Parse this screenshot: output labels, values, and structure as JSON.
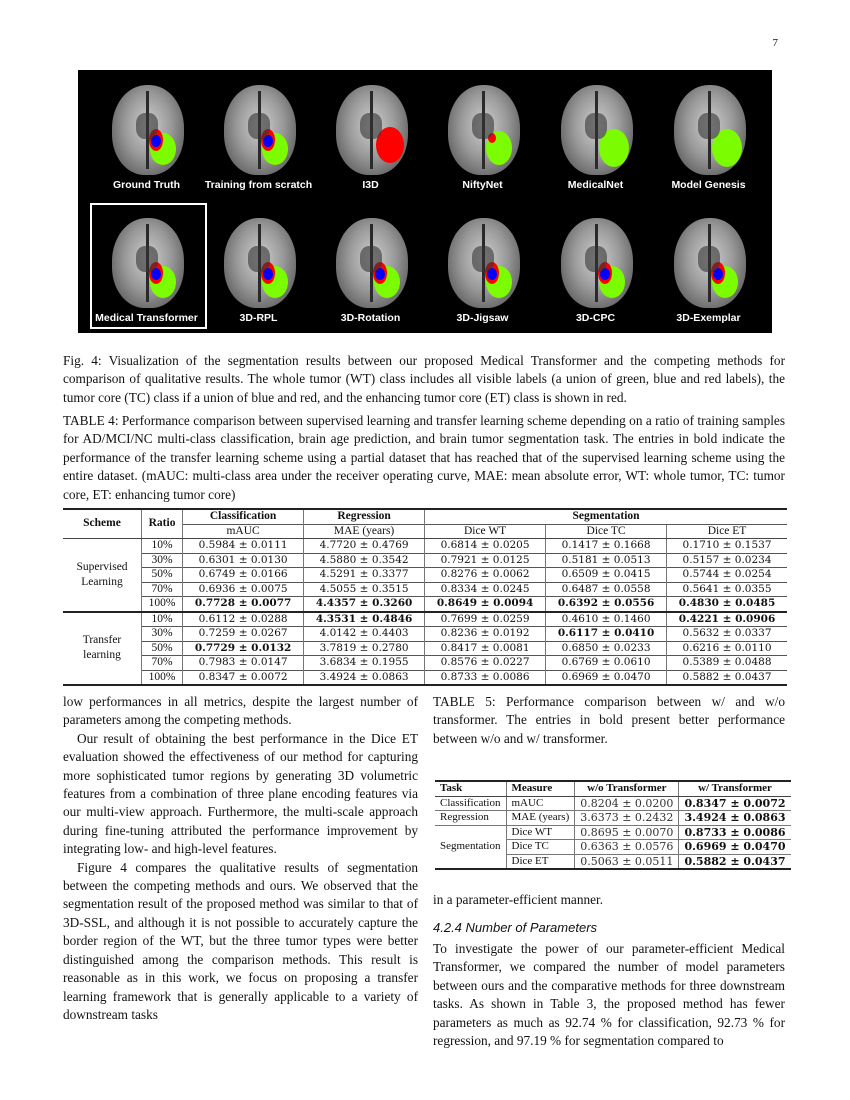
{
  "page_number": "7",
  "figure": {
    "row1": [
      "Ground Truth",
      "Training from scratch",
      "I3D",
      "NiftyNet",
      "MedicalNet",
      "Model Genesis"
    ],
    "row2": [
      "Medical Transformer",
      "3D-RPL",
      "3D-Rotation",
      "3D-Jigsaw",
      "3D-CPC",
      "3D-Exemplar"
    ],
    "colors": {
      "whole_tumor": "#7CFC00",
      "tumor_core": "#0000ff",
      "enhancing": "#ff0000"
    }
  },
  "fig_caption": "Fig. 4: Visualization of the segmentation results between our proposed Medical Transformer and the competing methods for comparison of qualitative results. The whole tumor (WT) class includes all visible labels (a union of green, blue and red labels), the tumor core (TC) class if a union of blue and red, and the enhancing tumor core (ET) class is shown in red.",
  "table4": {
    "caption": "TABLE 4: Performance comparison between supervised learning and transfer learning scheme depending on a ratio of training samples for AD/MCI/NC multi-class classification, brain age prediction, and brain tumor segmentation task. The entries in bold indicate the performance of the transfer learning scheme using a partial dataset that has reached that of the supervised learning scheme using the entire dataset. (mAUC: multi-class area under the receiver operating curve, MAE: mean absolute error, WT: whole tumor, TC: tumor core, ET: enhancing tumor core)",
    "headers": {
      "scheme": "Scheme",
      "ratio": "Ratio",
      "classification": "Classification",
      "regression": "Regression",
      "segmentation": "Segmentation",
      "cols": [
        "mAUC",
        "MAE (years)",
        "Dice WT",
        "Dice TC",
        "Dice ET"
      ]
    },
    "groups": [
      {
        "name": "Supervised Learning",
        "rows": [
          {
            "ratio": "10%",
            "cells": [
              "0.5984 ± 0.0111",
              "4.7720 ± 0.4769",
              "0.6814 ± 0.0205",
              "0.1417 ± 0.1668",
              "0.1710 ± 0.1537"
            ],
            "bold": []
          },
          {
            "ratio": "30%",
            "cells": [
              "0.6301 ± 0.0130",
              "4.5880 ± 0.3542",
              "0.7921 ± 0.0125",
              "0.5181 ± 0.0513",
              "0.5157 ± 0.0234"
            ],
            "bold": []
          },
          {
            "ratio": "50%",
            "cells": [
              "0.6749 ± 0.0166",
              "4.5291 ± 0.3377",
              "0.8276 ± 0.0062",
              "0.6509 ± 0.0415",
              "0.5744 ± 0.0254"
            ],
            "bold": []
          },
          {
            "ratio": "70%",
            "cells": [
              "0.6936 ± 0.0075",
              "4.5055 ± 0.3515",
              "0.8334 ± 0.0245",
              "0.6487 ± 0.0558",
              "0.5641 ± 0.0355"
            ],
            "bold": []
          },
          {
            "ratio": "100%",
            "cells": [
              "0.7728 ± 0.0077",
              "4.4357 ± 0.3260",
              "0.8649 ± 0.0094",
              "0.6392 ± 0.0556",
              "0.4830 ± 0.0485"
            ],
            "bold": [
              0,
              1,
              2,
              3,
              4
            ]
          }
        ]
      },
      {
        "name": "Transfer learning",
        "rows": [
          {
            "ratio": "10%",
            "cells": [
              "0.6112 ± 0.0288",
              "4.3531 ± 0.4846",
              "0.7699 ± 0.0259",
              "0.4610 ± 0.1460",
              "0.4221 ± 0.0906"
            ],
            "bold": [
              1,
              4
            ]
          },
          {
            "ratio": "30%",
            "cells": [
              "0.7259 ± 0.0267",
              "4.0142 ± 0.4403",
              "0.8236 ± 0.0192",
              "0.6117 ± 0.0410",
              "0.5632 ± 0.0337"
            ],
            "bold": [
              3
            ]
          },
          {
            "ratio": "50%",
            "cells": [
              "0.7729 ± 0.0132",
              "3.7819 ± 0.2780",
              "0.8417 ± 0.0081",
              "0.6850 ± 0.0233",
              "0.6216 ± 0.0110"
            ],
            "bold": [
              0
            ]
          },
          {
            "ratio": "70%",
            "cells": [
              "0.7983 ± 0.0147",
              "3.6834 ± 0.1955",
              "0.8576 ± 0.0227",
              "0.6769 ± 0.0610",
              "0.5389 ± 0.0488"
            ],
            "bold": []
          },
          {
            "ratio": "100%",
            "cells": [
              "0.8347 ± 0.0072",
              "3.4924 ± 0.0863",
              "0.8733 ± 0.0086",
              "0.6969 ± 0.0470",
              "0.5882 ± 0.0437"
            ],
            "bold": []
          }
        ]
      }
    ]
  },
  "table5": {
    "caption": "TABLE 5: Performance comparison between w/ and w/o transformer. The entries in bold present better performance between w/o and w/ transformer.",
    "headers": [
      "Task",
      "Measure",
      "w/o Transformer",
      "w/ Transformer"
    ],
    "rows": [
      {
        "task": "Classification",
        "measure": "mAUC",
        "wo": "0.8204 ± 0.0200",
        "w": "0.8347 ± 0.0072"
      },
      {
        "task": "Regression",
        "measure": "MAE (years)",
        "wo": "3.6373 ± 0.2432",
        "w": "3.4924 ± 0.0863"
      },
      {
        "task": "Segmentation",
        "measure": "Dice WT",
        "wo": "0.8695 ± 0.0070",
        "w": "0.8733 ± 0.0086"
      },
      {
        "task": "",
        "measure": "Dice TC",
        "wo": "0.6363 ± 0.0576",
        "w": "0.6969 ± 0.0470"
      },
      {
        "task": "",
        "measure": "Dice ET",
        "wo": "0.5063 ± 0.0511",
        "w": "0.5882 ± 0.0437"
      }
    ]
  },
  "left_col": [
    "low performances in all metrics, despite the largest number of parameters among the competing methods.",
    "Our result of obtaining the best performance in the Dice ET evaluation showed the effectiveness of our method for capturing more sophisticated tumor regions by generating 3D volumetric features from a combination of three plane encoding features via our multi-view approach. Furthermore, the multi-scale approach during fine-tuning attributed the performance improvement by integrating low- and high-level features.",
    "Figure 4 compares the qualitative results of segmentation between the competing methods and ours. We observed that the segmentation result of the proposed method was similar to that of 3D-SSL, and although it is not possible to accurately capture the border region of the WT, but the three tumor types were better distinguished among the comparison methods. This result is reasonable as in this work, we focus on proposing a transfer learning framework that is generally applicable to a variety of downstream tasks"
  ],
  "right_col": {
    "continuation": "in a parameter-efficient manner.",
    "heading": "4.2.4   Number of Parameters",
    "paragraph": "To investigate the power of our parameter-efficient Medical Transformer, we compared the number of model parameters between ours and the comparative methods for three downstream tasks. As shown in Table 3, the proposed method has fewer parameters as much as 92.74 % for classification, 92.73 % for regression, and 97.19 % for segmentation compared to"
  }
}
